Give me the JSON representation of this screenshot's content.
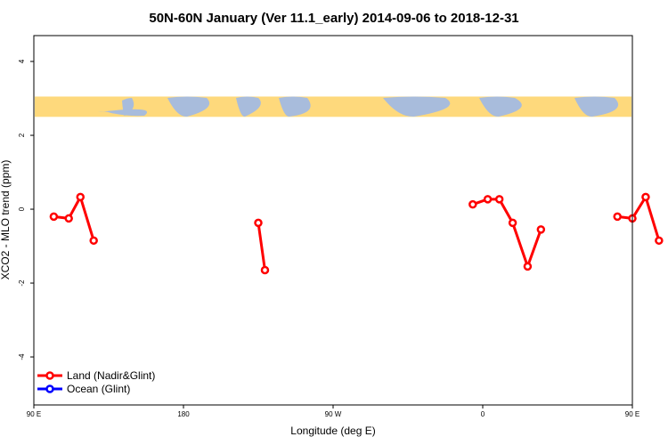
{
  "chart_data": {
    "type": "line",
    "title": "50N-60N January (Ver 11.1_early)   2014-09-06 to 2018-12-31",
    "xlabel": "Longitude (deg E)",
    "ylabel": "XCO2 - MLO trend (ppm)",
    "xlim": [
      90,
      450
    ],
    "ylim": [
      -5.3,
      4.7
    ],
    "x_ticks": [
      {
        "value": 90,
        "label": "90 E"
      },
      {
        "value": 180,
        "label": "180"
      },
      {
        "value": 270,
        "label": "90 W"
      },
      {
        "value": 360,
        "label": "0"
      },
      {
        "value": 450,
        "label": "90 E"
      },
      {
        "value": 540,
        "label": "180"
      }
    ],
    "y_ticks": [
      {
        "value": 4,
        "label": "4"
      },
      {
        "value": 2,
        "label": "2"
      },
      {
        "value": 0,
        "label": "0"
      },
      {
        "value": -2,
        "label": "-2"
      },
      {
        "value": -4,
        "label": "-4"
      }
    ],
    "map_band": {
      "y_top": 3.05,
      "y_bottom": 2.5,
      "land_color": "#a8bcdc",
      "ocean_color": "#fed97c"
    },
    "series": [
      {
        "name": "Land (Nadir&Glint)",
        "color": "#ff0000",
        "segments": [
          [
            [
              102,
              -0.2
            ],
            [
              111,
              -0.25
            ],
            [
              118,
              0.33
            ],
            [
              126,
              -0.85
            ]
          ],
          [
            [
              225,
              -0.37
            ],
            [
              229,
              -1.65
            ]
          ],
          [
            [
              354,
              0.13
            ],
            [
              363,
              0.27
            ],
            [
              370,
              0.27
            ],
            [
              378,
              -0.37
            ],
            [
              387,
              -1.55
            ],
            [
              395,
              -0.55
            ]
          ],
          [
            [
              441,
              -0.2
            ],
            [
              450,
              -0.25
            ],
            [
              458,
              0.33
            ],
            [
              466,
              -0.85
            ]
          ]
        ]
      },
      {
        "name": "Ocean (Glint)",
        "color": "#0000ff",
        "segments": []
      }
    ],
    "legend": "bottom-left",
    "grid": false
  }
}
